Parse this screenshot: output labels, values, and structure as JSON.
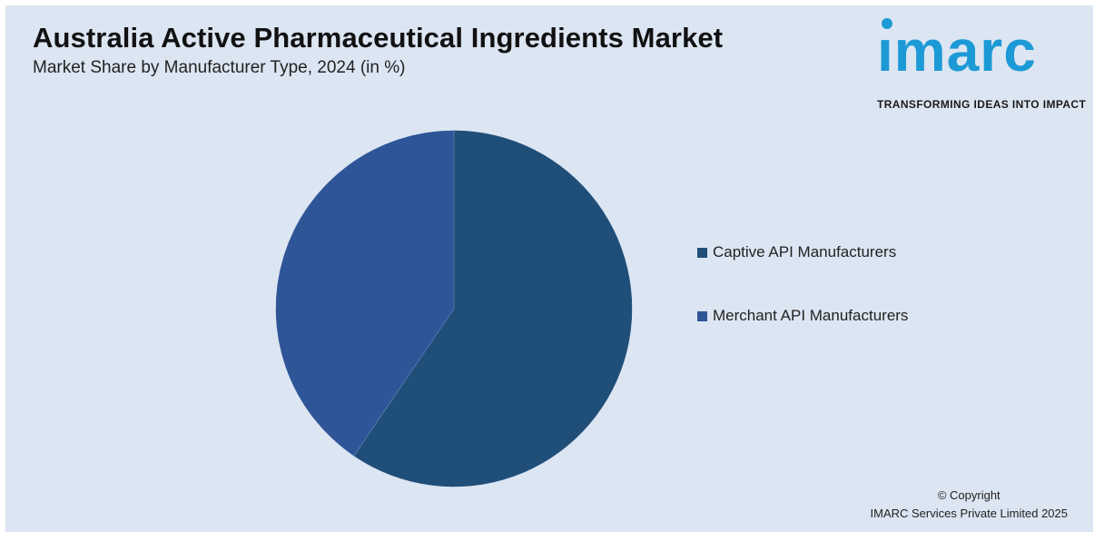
{
  "title": "Australia Active Pharmaceutical Ingredients Market",
  "subtitle": "Market Share by Manufacturer Type, 2024 (in %)",
  "logo": {
    "word": "ımarc",
    "tagline": "TRANSFORMING IDEAS INTO IMPACT",
    "color": "#1c9ad6"
  },
  "chart_data": {
    "type": "pie",
    "title": "Australia Active Pharmaceutical Ingredients Market",
    "subtitle": "Market Share by Manufacturer Type, 2024 (in %)",
    "categories": [
      "Captive API Manufacturers",
      "Merchant API Manufacturers"
    ],
    "values": [
      59.5,
      40.5
    ],
    "colors": [
      "#1f4e79",
      "#2e5597"
    ],
    "start_angle_deg": 0,
    "direction": "clockwise",
    "legend_placement": "right"
  },
  "copyright": {
    "line1": "© Copyright",
    "line2": "IMARC Services Private Limited 2025"
  }
}
